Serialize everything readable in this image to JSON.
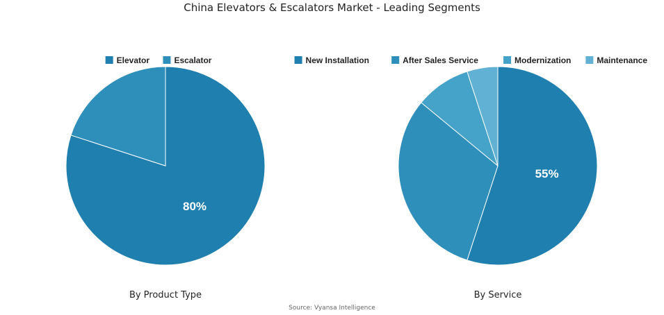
{
  "title": "China Elevators & Escalators Market - Leading Segments",
  "source": "Source: Vyansa Intelligence",
  "chart_data": [
    {
      "type": "pie",
      "subtitle": "By Product Type",
      "legend": "top",
      "categories": [
        "Elevator",
        "Escalator"
      ],
      "values": [
        80,
        20
      ],
      "colors": [
        "#1f7fae",
        "#2f8fbb"
      ],
      "labels": [
        "80%",
        ""
      ]
    },
    {
      "type": "pie",
      "subtitle": "By Service",
      "legend": "top",
      "categories": [
        "New Installation",
        "After Sales Service",
        "Modernization",
        "Maintenance"
      ],
      "values": [
        55,
        31,
        9,
        5
      ],
      "colors": [
        "#1f7fae",
        "#2f8fbb",
        "#45a2c8",
        "#60b1d3"
      ],
      "labels": [
        "55%",
        "",
        "",
        ""
      ]
    }
  ]
}
